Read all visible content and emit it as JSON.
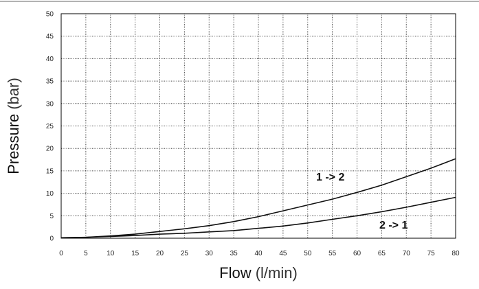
{
  "chart_data": {
    "type": "line",
    "title": "",
    "xlabel_main": "Flow",
    "xlabel_unit": " (l/min)",
    "ylabel_main": "Pressure",
    "ylabel_unit": " (bar)",
    "xlim": [
      0,
      80
    ],
    "ylim": [
      0,
      50
    ],
    "x_ticks": [
      0,
      5,
      10,
      15,
      20,
      25,
      30,
      35,
      40,
      45,
      50,
      55,
      60,
      65,
      70,
      75,
      80
    ],
    "y_ticks": [
      0,
      5,
      10,
      15,
      20,
      25,
      30,
      35,
      40,
      45,
      50
    ],
    "grid": true,
    "series": [
      {
        "name": "1 -> 2",
        "x": [
          0,
          5,
          10,
          15,
          20,
          25,
          30,
          35,
          40,
          45,
          50,
          55,
          60,
          65,
          70,
          75,
          80
        ],
        "y": [
          0.1,
          0.2,
          0.5,
          0.9,
          1.5,
          2.1,
          2.8,
          3.7,
          4.8,
          6.1,
          7.4,
          8.7,
          10.2,
          11.8,
          13.7,
          15.6,
          17.7
        ]
      },
      {
        "name": "2 -> 1",
        "x": [
          0,
          5,
          10,
          15,
          20,
          25,
          30,
          35,
          40,
          45,
          50,
          55,
          60,
          65,
          70,
          75,
          80
        ],
        "y": [
          0.1,
          0.2,
          0.4,
          0.6,
          0.9,
          1.1,
          1.4,
          1.7,
          2.2,
          2.7,
          3.4,
          4.2,
          5.0,
          5.9,
          6.9,
          8.0,
          9.1
        ]
      }
    ],
    "series_labels": [
      "1 -> 2",
      "2 -> 1"
    ]
  }
}
